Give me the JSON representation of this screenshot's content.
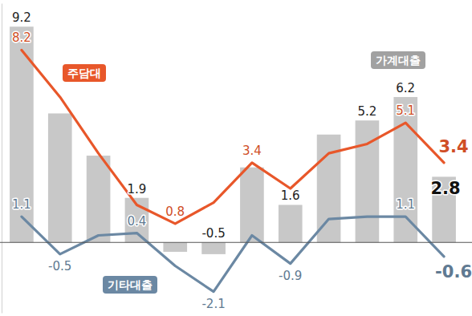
{
  "chart_data": {
    "type": "bar",
    "categories": [
      null,
      null,
      null,
      null,
      null,
      null,
      null,
      null,
      null,
      null,
      null,
      null
    ],
    "ylim": [
      -3,
      10.2
    ],
    "tick_labels": false,
    "data_labels": true,
    "series": [
      {
        "name": "가계대출",
        "type": "bar",
        "color": "#c8c8c8",
        "values": [
          9.2,
          5.5,
          3.7,
          1.9,
          -0.4,
          -0.5,
          3.2,
          1.6,
          4.6,
          5.2,
          6.2,
          2.8
        ],
        "value_labels": [
          "9.2",
          null,
          null,
          "1.9",
          null,
          "-0.5",
          null,
          "1.6",
          null,
          "5.2",
          "6.2",
          "2.8"
        ]
      },
      {
        "name": "주담대",
        "type": "line",
        "color": "#e8572a",
        "values": [
          8.2,
          6.2,
          3.8,
          1.6,
          0.8,
          1.7,
          3.4,
          2.3,
          3.8,
          4.2,
          5.1,
          3.4
        ],
        "value_labels": [
          "8.2",
          null,
          null,
          null,
          "0.8",
          null,
          "3.4",
          null,
          null,
          null,
          "5.1",
          "3.4"
        ]
      },
      {
        "name": "기타대출",
        "type": "line",
        "color": "#6b88a3",
        "values": [
          1.1,
          -0.5,
          0.3,
          0.4,
          -1.0,
          -2.1,
          0.3,
          -0.9,
          1.0,
          1.1,
          1.1,
          -0.6
        ],
        "value_labels": [
          "1.1",
          "-0.5",
          null,
          "0.4",
          null,
          "-2.1",
          null,
          "-0.9",
          null,
          null,
          "1.1",
          "-0.6"
        ]
      }
    ]
  }
}
